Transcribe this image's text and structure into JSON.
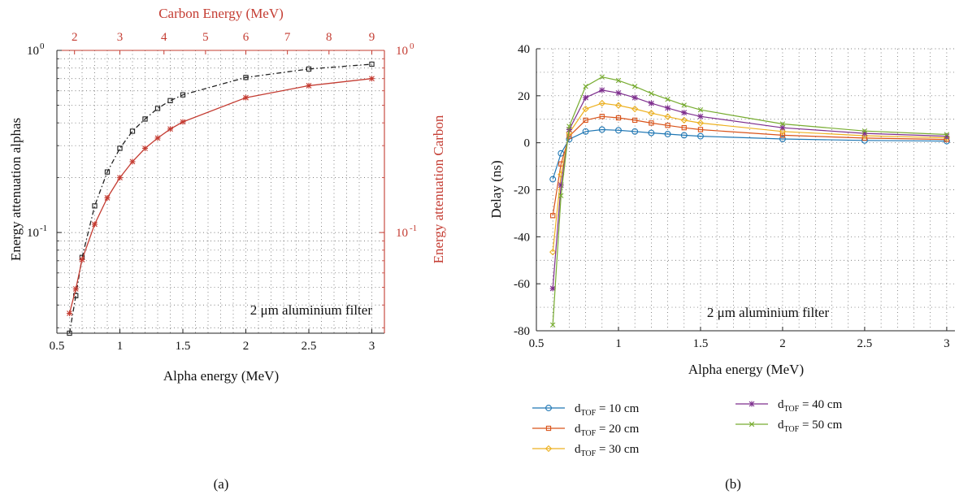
{
  "chart_data": [
    {
      "type": "line",
      "panel_label": "(a)",
      "xlabel": "Alpha energy (MeV)",
      "ylabel": "Energy attenuation alphas",
      "top_xlabel": "Carbon Energy (MeV)",
      "right_ylabel": "Energy attenuation Carbon",
      "annotation": "2 μm aluminium filter",
      "xlim": [
        0.5,
        3.1
      ],
      "ylim": [
        0.028,
        1.0
      ],
      "yscale": "log",
      "xticks": [
        0.5,
        1,
        1.5,
        2,
        2.5,
        3
      ],
      "xtick_labels": [
        "0.5",
        "1",
        "1.5",
        "2",
        "2.5",
        "3"
      ],
      "yticks": [
        {
          "mantissa": "10",
          "exp": "0",
          "value": 1.0
        },
        {
          "mantissa": "10",
          "exp": "-1",
          "value": 0.1
        }
      ],
      "top_xticks": [
        {
          "label": "2",
          "alpha_pos": 0.64
        },
        {
          "label": "3",
          "alpha_pos": 1.0
        },
        {
          "label": "4",
          "alpha_pos": 1.35
        },
        {
          "label": "5",
          "alpha_pos": 1.68
        },
        {
          "label": "6",
          "alpha_pos": 2.0
        },
        {
          "label": "7",
          "alpha_pos": 2.33
        },
        {
          "label": "8",
          "alpha_pos": 2.66
        },
        {
          "label": "9",
          "alpha_pos": 3.0
        }
      ],
      "grid": true,
      "series": [
        {
          "color": "#222222",
          "marker": "square",
          "dash": "dashdot",
          "x": [
            0.6,
            0.65,
            0.7,
            0.8,
            0.9,
            1.0,
            1.1,
            1.2,
            1.3,
            1.4,
            1.5,
            2.0,
            2.5,
            3.0
          ],
          "y": [
            0.028,
            0.045,
            0.073,
            0.14,
            0.215,
            0.29,
            0.36,
            0.42,
            0.48,
            0.53,
            0.57,
            0.71,
            0.79,
            0.84
          ]
        },
        {
          "color": "#c43c32",
          "marker": "star",
          "dash": "solid",
          "x": [
            0.6,
            0.65,
            0.7,
            0.8,
            0.9,
            1.0,
            1.1,
            1.2,
            1.3,
            1.4,
            1.5,
            2.0,
            2.5,
            3.0
          ],
          "y": [
            0.036,
            0.049,
            0.071,
            0.111,
            0.155,
            0.2,
            0.245,
            0.29,
            0.33,
            0.37,
            0.405,
            0.55,
            0.64,
            0.7
          ]
        }
      ]
    },
    {
      "type": "line",
      "panel_label": "(b)",
      "xlabel": "Alpha energy (MeV)",
      "ylabel": "Delay (ns)",
      "annotation": "2 μm aluminium filter",
      "xlim": [
        0.5,
        3.05
      ],
      "ylim": [
        -80,
        40
      ],
      "xticks": [
        0.5,
        1,
        1.5,
        2,
        2.5,
        3
      ],
      "xtick_labels": [
        "0.5",
        "1",
        "1.5",
        "2",
        "2.5",
        "3"
      ],
      "yticks": [
        -80,
        -60,
        -40,
        -20,
        0,
        20,
        40
      ],
      "ytick_labels": [
        "-80",
        "-60",
        "-40",
        "-20",
        "0",
        "20",
        "40"
      ],
      "grid": true,
      "legend": "below",
      "x": [
        0.6,
        0.65,
        0.7,
        0.8,
        0.9,
        1.0,
        1.1,
        1.2,
        1.3,
        1.4,
        1.5,
        2.0,
        2.5,
        3.0
      ],
      "series": [
        {
          "name_prefix": "d",
          "name_sub": "TOF",
          "name_suffix": " = 10 cm",
          "color": "#1f77b4",
          "marker": "circle",
          "y": [
            -15.5,
            -4.5,
            1.5,
            4.8,
            5.6,
            5.3,
            4.8,
            4.2,
            3.7,
            3.2,
            2.8,
            1.6,
            1.0,
            0.7
          ]
        },
        {
          "name_prefix": "d",
          "name_sub": "TOF",
          "name_suffix": " = 20 cm",
          "color": "#d95319",
          "marker": "square",
          "y": [
            -31,
            -9,
            2.8,
            9.6,
            11.2,
            10.6,
            9.6,
            8.4,
            7.4,
            6.4,
            5.6,
            3.2,
            2.0,
            1.4
          ]
        },
        {
          "name_prefix": "d",
          "name_sub": "TOF",
          "name_suffix": " = 30 cm",
          "color": "#edb120",
          "marker": "diamond",
          "y": [
            -46.5,
            -13.5,
            4.2,
            14.4,
            16.8,
            15.9,
            14.4,
            12.6,
            11.1,
            9.6,
            8.4,
            4.8,
            3.0,
            2.1
          ]
        },
        {
          "name_prefix": "d",
          "name_sub": "TOF",
          "name_suffix": " = 40 cm",
          "color": "#7e2f8e",
          "marker": "star",
          "y": [
            -62,
            -18,
            5.6,
            19.2,
            22.4,
            21.2,
            19.2,
            16.8,
            14.8,
            12.8,
            11.2,
            6.4,
            4.0,
            2.8
          ]
        },
        {
          "name_prefix": "d",
          "name_sub": "TOF",
          "name_suffix": " = 50 cm",
          "color": "#77ac30",
          "marker": "x",
          "y": [
            -77.5,
            -22.5,
            7.0,
            24.0,
            28.0,
            26.5,
            24.0,
            21.0,
            18.5,
            16.0,
            14.0,
            8.0,
            5.0,
            3.5
          ]
        }
      ]
    }
  ]
}
